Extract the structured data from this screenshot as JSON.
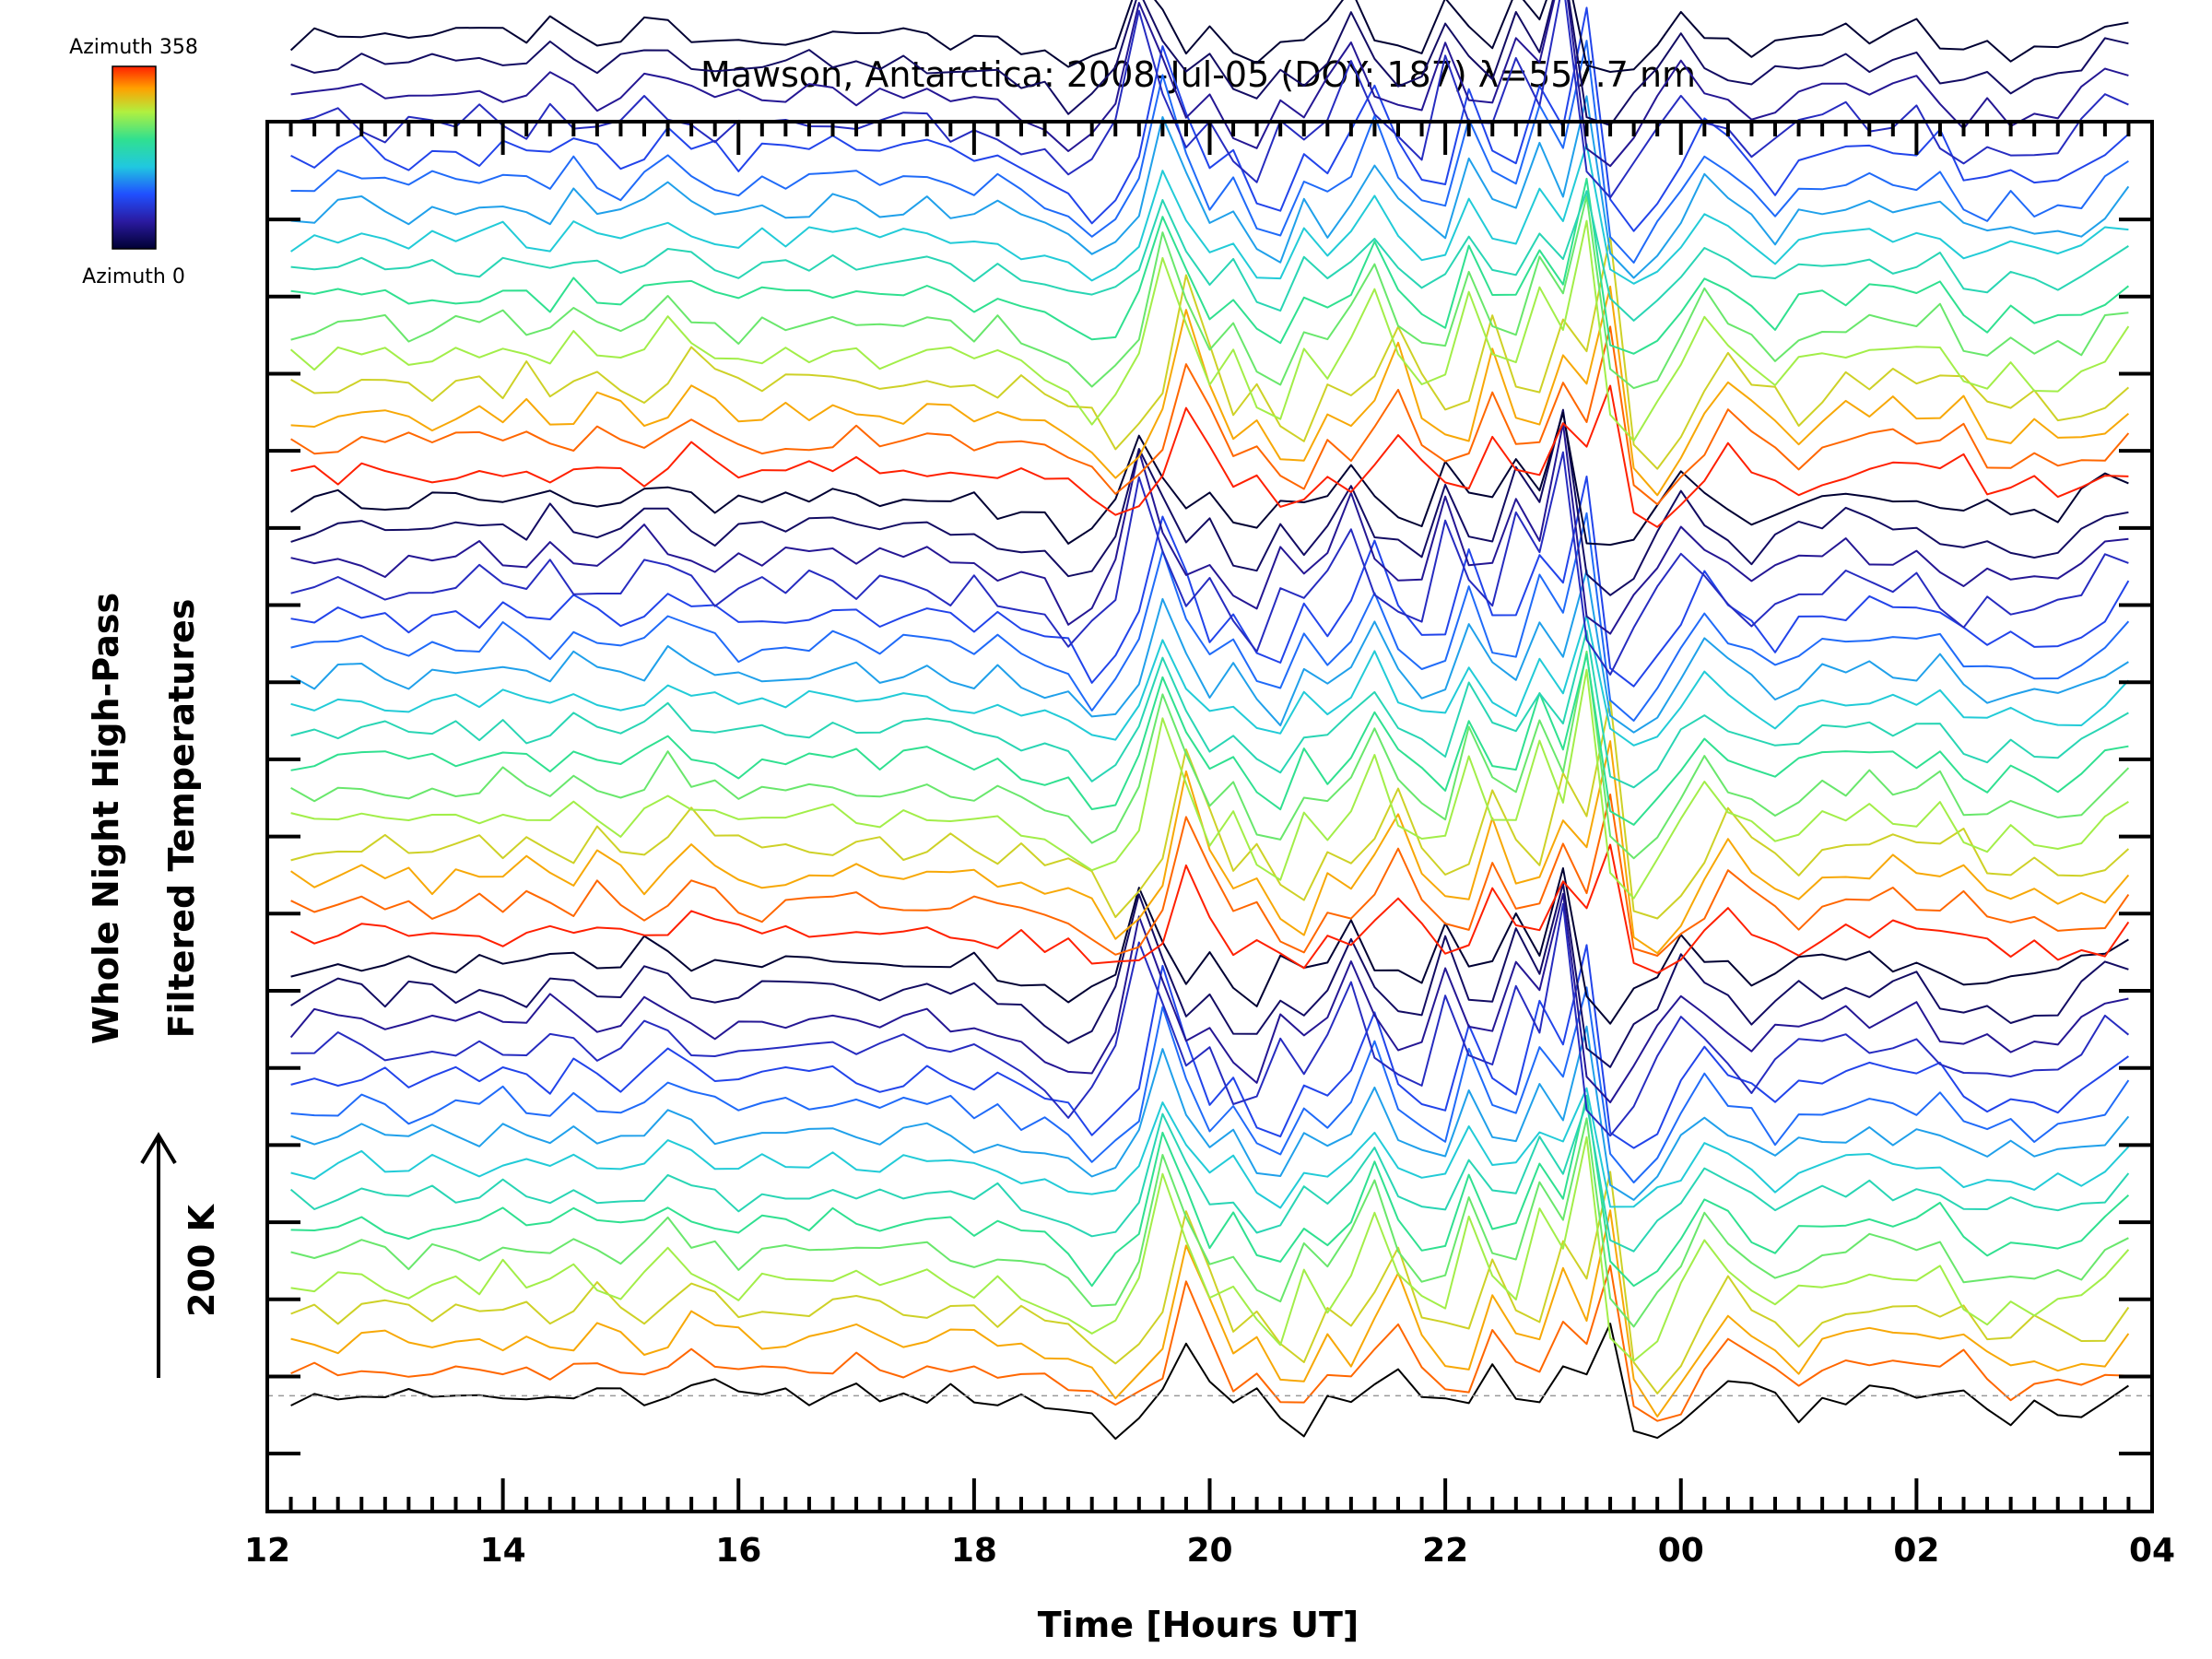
{
  "chart_data": {
    "type": "line",
    "title": "Mawson, Antarctica: 2008-Jul-05 (DOY: 187) λ=557.7 nm",
    "xlabel": "Time [Hours UT]",
    "ylabel_line1": "Whole Night High-Pass",
    "ylabel_line2": "Filtered Temperatures",
    "scale_label": "200 K",
    "colorbar": {
      "top_label": "Azimuth 358",
      "bottom_label": "Azimuth 0",
      "range": [
        0,
        358
      ]
    },
    "x_ticks": [
      "12",
      "14",
      "16",
      "18",
      "20",
      "22",
      "00",
      "02",
      "04"
    ],
    "xlim_hours": [
      12,
      28
    ],
    "baseline_dashed": true,
    "series_count": 48,
    "series_offset_k": 25,
    "ylim_k": [
      -100,
      1100
    ],
    "x_hours": [
      12.2,
      12.4,
      12.6,
      12.8,
      13.0,
      13.2,
      13.4,
      13.6,
      13.8,
      14.0,
      14.2,
      14.4,
      14.6,
      14.8,
      15.0,
      15.2,
      15.4,
      15.6,
      15.8,
      16.0,
      16.2,
      16.4,
      16.6,
      16.8,
      17.0,
      17.2,
      17.4,
      17.6,
      17.8,
      18.0,
      18.2,
      18.4,
      18.6,
      18.8,
      19.0,
      19.2,
      19.4,
      19.6,
      19.8,
      20.0,
      20.2,
      20.4,
      20.6,
      20.8,
      21.0,
      21.2,
      21.4,
      21.6,
      21.8,
      22.0,
      22.2,
      22.4,
      22.6,
      22.8,
      23.0,
      23.2,
      23.4,
      23.6,
      23.8,
      24.0,
      24.2,
      24.4,
      24.6,
      24.8,
      25.0,
      25.2,
      25.4,
      25.6,
      25.8,
      26.0,
      26.2,
      26.4,
      26.6,
      26.8,
      27.0,
      27.2,
      27.4,
      27.6,
      27.8
    ],
    "base_profile_k": [
      -5,
      -8,
      0,
      5,
      0,
      -10,
      0,
      0,
      -5,
      10,
      -5,
      -8,
      15,
      0,
      -10,
      0,
      25,
      10,
      0,
      -10,
      0,
      0,
      0,
      5,
      0,
      -5,
      0,
      5,
      0,
      -10,
      0,
      -15,
      -20,
      -30,
      -55,
      -40,
      -5,
      90,
      30,
      -20,
      0,
      -40,
      -50,
      0,
      -20,
      10,
      55,
      0,
      -20,
      -25,
      50,
      0,
      -10,
      60,
      20,
      120,
      -50,
      -70,
      -45,
      -10,
      30,
      5,
      -10,
      -30,
      -10,
      0,
      0,
      10,
      0,
      0,
      10,
      -20,
      -30,
      -15,
      -25,
      -25,
      -20,
      0,
      20
    ]
  }
}
